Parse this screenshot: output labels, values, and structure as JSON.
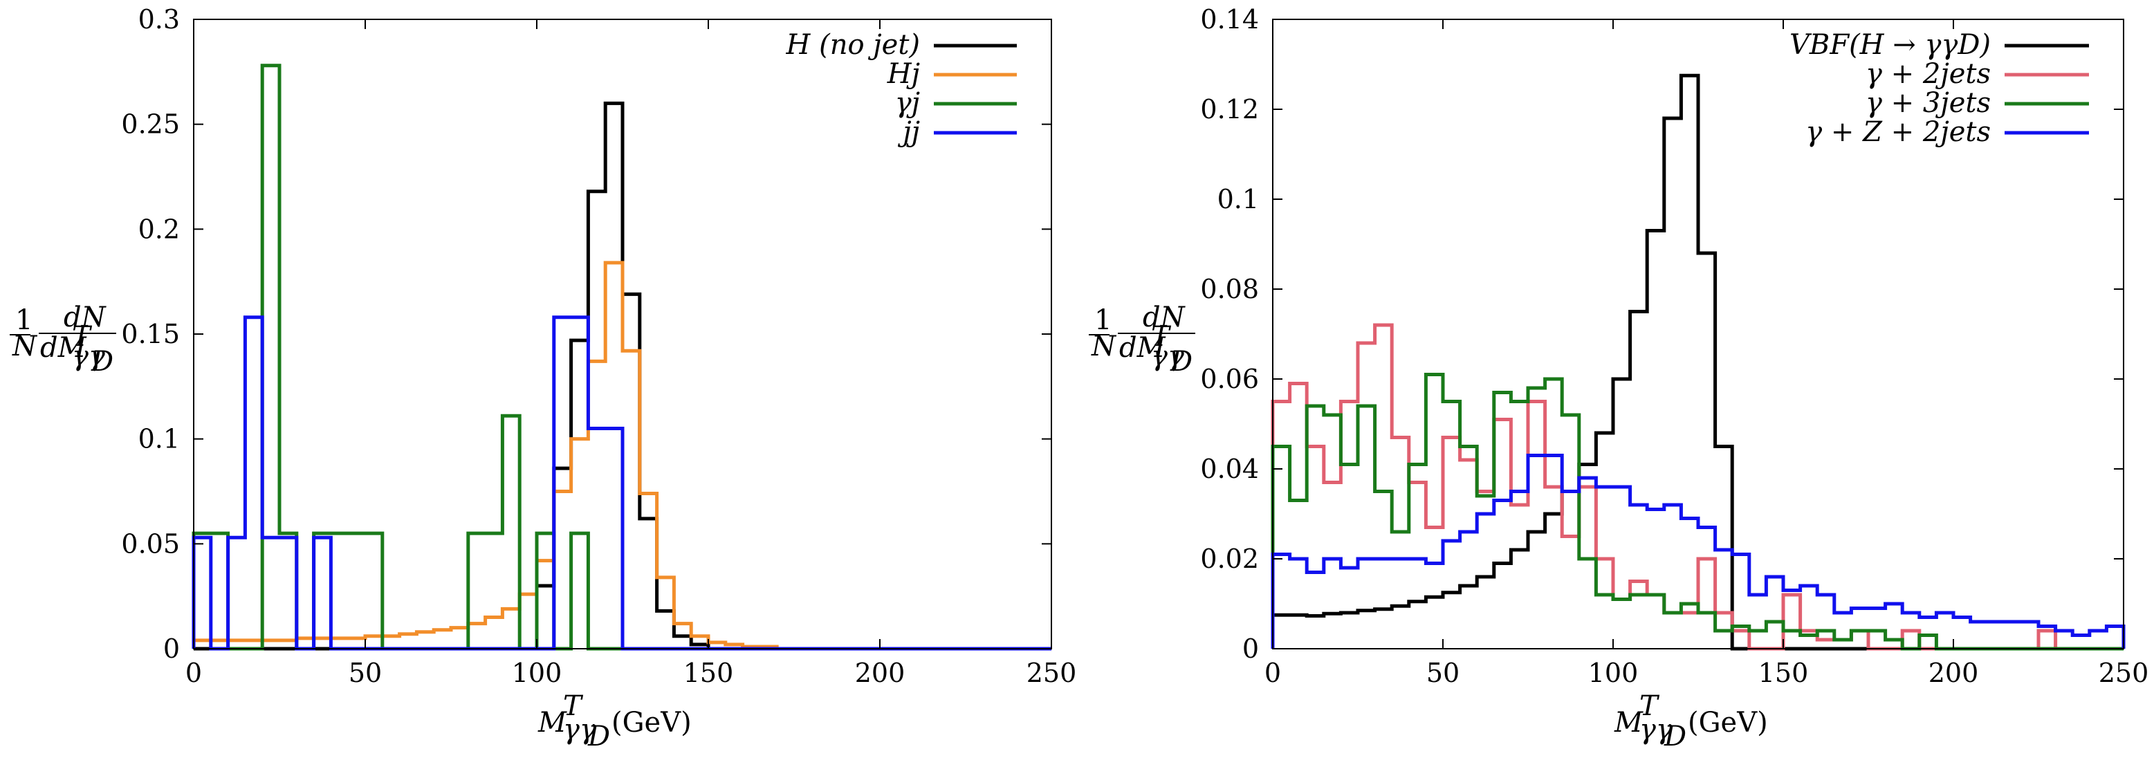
{
  "chart_data": [
    {
      "type": "histogram",
      "title": "",
      "xlabel": "M^T_γγD (GeV)",
      "ylabel": "1/N dN/dM^T_γγD",
      "xlim": [
        0,
        250
      ],
      "ylim": [
        0,
        0.3
      ],
      "xticks": [
        "0",
        "50",
        "100",
        "150",
        "200",
        "250"
      ],
      "xtick_values": [
        0,
        50,
        100,
        150,
        200,
        250
      ],
      "yticks": [
        "0",
        "0.05",
        "0.1",
        "0.15",
        "0.2",
        "0.25",
        "0.3"
      ],
      "ytick_values": [
        0,
        0.05,
        0.1,
        0.15,
        0.2,
        0.25,
        0.3
      ],
      "legend_position": "top-right",
      "series": [
        {
          "name": "H (no jet)",
          "color": "#000000",
          "edges": [
            0,
            100,
            105,
            110,
            115,
            120,
            125,
            130,
            135,
            140,
            145,
            150,
            250
          ],
          "values": [
            0,
            0.03,
            0.086,
            0.147,
            0.218,
            0.26,
            0.169,
            0.062,
            0.018,
            0.006,
            0.002,
            0.0
          ]
        },
        {
          "name": "Hj",
          "color": "#f28e2b",
          "edges": [
            0,
            10,
            20,
            30,
            40,
            50,
            55,
            60,
            65,
            70,
            75,
            80,
            85,
            90,
            95,
            100,
            105,
            110,
            115,
            120,
            125,
            130,
            135,
            140,
            145,
            150,
            155,
            160,
            170,
            250
          ],
          "values": [
            0.004,
            0.004,
            0.004,
            0.005,
            0.005,
            0.006,
            0.006,
            0.007,
            0.008,
            0.009,
            0.01,
            0.012,
            0.015,
            0.019,
            0.026,
            0.042,
            0.075,
            0.1,
            0.137,
            0.184,
            0.142,
            0.074,
            0.034,
            0.012,
            0.006,
            0.003,
            0.002,
            0.001,
            0.0
          ]
        },
        {
          "name": "γj",
          "color": "#1a7a1a",
          "edges": [
            0,
            10,
            20,
            25,
            30,
            35,
            55,
            80,
            90,
            95,
            100,
            105,
            110,
            115,
            250
          ],
          "values": [
            0.055,
            0.0,
            0.278,
            0.055,
            0.0,
            0.055,
            0.0,
            0.055,
            0.111,
            0.0,
            0.055,
            0.0,
            0.055,
            0.0
          ]
        },
        {
          "name": "jj",
          "color": "#1010ee",
          "edges": [
            0,
            5,
            10,
            15,
            20,
            30,
            35,
            40,
            105,
            115,
            125,
            250
          ],
          "values": [
            0.053,
            0.0,
            0.053,
            0.158,
            0.053,
            0.0,
            0.053,
            0.0,
            0.158,
            0.105,
            0.0
          ]
        }
      ]
    },
    {
      "type": "histogram",
      "title": "",
      "xlabel": "M^T_γγD (GeV)",
      "ylabel": "1/N dN/dM^T_γγD",
      "xlim": [
        0,
        250
      ],
      "ylim": [
        0,
        0.14
      ],
      "xticks": [
        "0",
        "50",
        "100",
        "150",
        "200",
        "250"
      ],
      "xtick_values": [
        0,
        50,
        100,
        150,
        200,
        250
      ],
      "yticks": [
        "0",
        "0.02",
        "0.04",
        "0.06",
        "0.08",
        "0.1",
        "0.12",
        "0.14"
      ],
      "ytick_values": [
        0,
        0.02,
        0.04,
        0.06,
        0.08,
        0.1,
        0.12,
        0.14
      ],
      "legend_position": "top-right",
      "series": [
        {
          "name": "VBF(H → γγD)",
          "color": "#000000",
          "bin_start": 0,
          "bin_width": 5,
          "values": [
            0.0075,
            0.0075,
            0.0073,
            0.0078,
            0.008,
            0.0085,
            0.0088,
            0.0095,
            0.0105,
            0.0115,
            0.0125,
            0.014,
            0.016,
            0.019,
            0.022,
            0.026,
            0.03,
            0.035,
            0.041,
            0.048,
            0.06,
            0.075,
            0.093,
            0.118,
            0.1275,
            0.088,
            0.045,
            0.0,
            0.0,
            0.0,
            0.0,
            0.0,
            0.0,
            0.0,
            0.0,
            0.0,
            0.0,
            0.0,
            0.0,
            0.0,
            0.0,
            0.0,
            0.0,
            0.0,
            0.0,
            0.0,
            0.0,
            0.0,
            0.0,
            0.0
          ]
        },
        {
          "name": "γ + 2jets",
          "color": "#e06070",
          "bin_start": 0,
          "bin_width": 5,
          "values": [
            0.055,
            0.059,
            0.045,
            0.037,
            0.055,
            0.068,
            0.072,
            0.047,
            0.037,
            0.027,
            0.047,
            0.042,
            0.035,
            0.051,
            0.032,
            0.055,
            0.036,
            0.025,
            0.036,
            0.02,
            0.011,
            0.015,
            0.012,
            0.008,
            0.008,
            0.02,
            0.008,
            0.004,
            0.0,
            0.0,
            0.012,
            0.004,
            0.002,
            0.002,
            0.004,
            0.0,
            0.0,
            0.004,
            0.0,
            0.0,
            0.0,
            0.0,
            0.0,
            0.0,
            0.0,
            0.004,
            0.0,
            0.0,
            0.0,
            0.0
          ]
        },
        {
          "name": "γ + 3jets",
          "color": "#1a7a1a",
          "bin_start": 0,
          "bin_width": 5,
          "values": [
            0.045,
            0.033,
            0.054,
            0.052,
            0.041,
            0.054,
            0.035,
            0.026,
            0.041,
            0.061,
            0.055,
            0.045,
            0.034,
            0.057,
            0.055,
            0.058,
            0.06,
            0.052,
            0.02,
            0.012,
            0.011,
            0.012,
            0.012,
            0.008,
            0.01,
            0.008,
            0.004,
            0.005,
            0.004,
            0.006,
            0.004,
            0.003,
            0.004,
            0.002,
            0.004,
            0.004,
            0.002,
            0.0,
            0.003,
            0.0,
            0.0,
            0.0,
            0.0,
            0.0,
            0.0,
            0.0,
            0.0,
            0.0,
            0.0,
            0.0
          ]
        },
        {
          "name": "γ + Z + 2jets",
          "color": "#1010ee",
          "bin_start": 0,
          "bin_width": 5,
          "values": [
            0.021,
            0.02,
            0.017,
            0.02,
            0.018,
            0.02,
            0.02,
            0.02,
            0.02,
            0.019,
            0.024,
            0.026,
            0.03,
            0.033,
            0.035,
            0.043,
            0.043,
            0.035,
            0.038,
            0.036,
            0.036,
            0.032,
            0.031,
            0.032,
            0.029,
            0.027,
            0.022,
            0.021,
            0.012,
            0.016,
            0.013,
            0.014,
            0.012,
            0.008,
            0.009,
            0.009,
            0.01,
            0.008,
            0.007,
            0.008,
            0.007,
            0.006,
            0.006,
            0.006,
            0.006,
            0.005,
            0.004,
            0.003,
            0.004,
            0.005
          ]
        }
      ]
    }
  ]
}
